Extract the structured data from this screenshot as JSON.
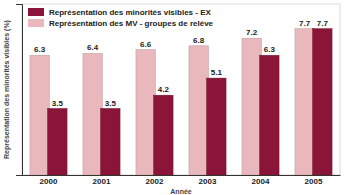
{
  "chart_data": {
    "type": "bar",
    "x_label": "Année",
    "y_label": "Représentation des minorités visibles (%)",
    "categories": [
      "2000",
      "2001",
      "2002",
      "2003",
      "2004",
      "2005"
    ],
    "series": [
      {
        "name": "Représentation des minorités visibles - EX",
        "color": "#8b1538",
        "values": [
          3.5,
          3.5,
          4.2,
          5.1,
          6.3,
          7.7
        ]
      },
      {
        "name": "Représentation des MV - groupes de relève",
        "color": "#e9b8bc",
        "values": [
          6.3,
          6.4,
          6.6,
          6.8,
          7.2,
          7.7
        ]
      }
    ],
    "ylim": [
      0,
      9
    ],
    "data_labels": true,
    "tick_labels": "x",
    "legend": "upper left"
  }
}
